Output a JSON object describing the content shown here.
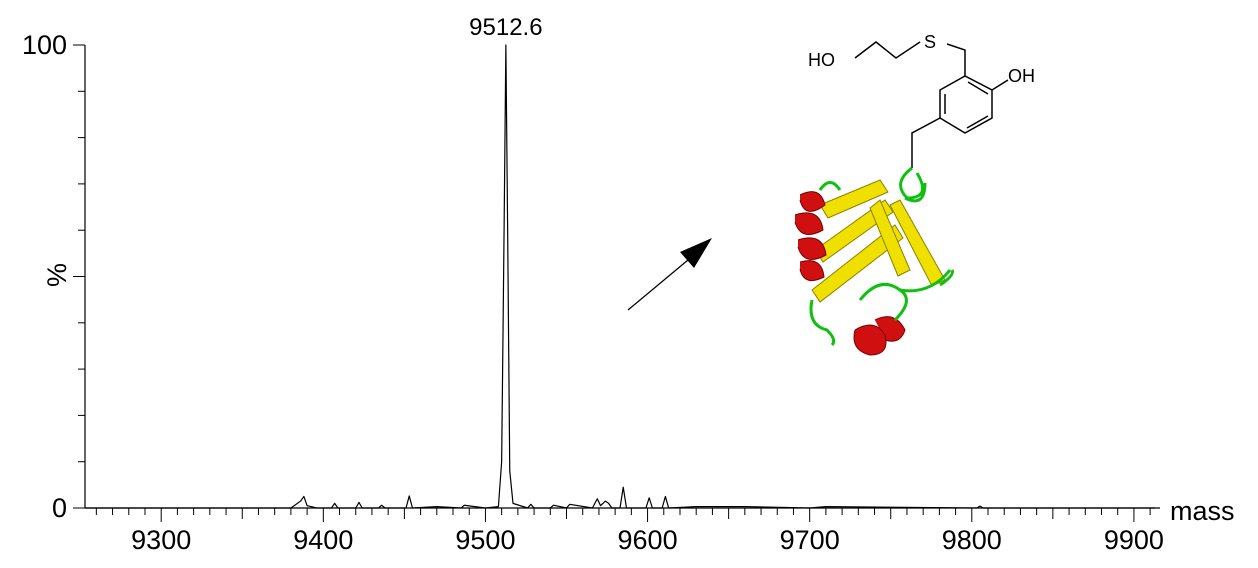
{
  "chart_data": {
    "type": "line",
    "x_label": "mass",
    "y_label": "%",
    "x": [
      9253,
      9380,
      9386,
      9388,
      9390,
      9396,
      9405,
      9407,
      9409,
      9420,
      9422,
      9424,
      9434,
      9436,
      9438,
      9451,
      9453,
      9455,
      9470,
      9485,
      9487,
      9500,
      9508,
      9510,
      9511.5,
      9512.6,
      9513.7,
      9515,
      9517,
      9526,
      9528,
      9530,
      9540,
      9542,
      9550,
      9552,
      9566,
      9569,
      9571,
      9574,
      9576,
      9578,
      9583,
      9585,
      9587,
      9599,
      9601,
      9603,
      9609,
      9611,
      9613,
      9630,
      9660,
      9700,
      9710,
      9803,
      9805,
      9807,
      9913
    ],
    "values": [
      0,
      0,
      1.5,
      2.5,
      0.5,
      0,
      0,
      1,
      0,
      0,
      1.2,
      0,
      0,
      0.6,
      0,
      0,
      2.6,
      0,
      0.3,
      0,
      0.6,
      0,
      0.3,
      10,
      60,
      100,
      60,
      8,
      1,
      0,
      0.8,
      0,
      0,
      0.6,
      0,
      0.8,
      0,
      2,
      0.5,
      1.5,
      1,
      0,
      0,
      4.5,
      0,
      0,
      2.2,
      0,
      0,
      2.5,
      0,
      0.3,
      0.3,
      0,
      0.3,
      0,
      0.4,
      0,
      0
    ],
    "color": "#000000",
    "annotations": [
      {
        "text": "9512.6"
      }
    ],
    "xlim": [
      9253,
      9913
    ],
    "ylim": [
      0,
      100
    ],
    "xticks": [
      9300,
      9400,
      9500,
      9600,
      9700,
      9800,
      9900
    ],
    "x_minor_ticks": [
      9260,
      9270,
      9280,
      9290,
      9310,
      9320,
      9330,
      9340,
      9350,
      9360,
      9370,
      9380,
      9390,
      9410,
      9420,
      9430,
      9440,
      9450,
      9460,
      9470,
      9480,
      9490,
      9510,
      9520,
      9530,
      9540,
      9550,
      9560,
      9570,
      9580,
      9590,
      9610,
      9620,
      9630,
      9640,
      9650,
      9660,
      9670,
      9680,
      9690,
      9710,
      9720,
      9730,
      9740,
      9750,
      9760,
      9770,
      9780,
      9790,
      9810,
      9820,
      9830,
      9840,
      9850,
      9860,
      9870,
      9880,
      9890,
      9910
    ],
    "yticks": [
      0,
      100
    ],
    "y_minor_ticks": [
      10,
      20,
      30,
      40,
      50,
      60,
      70,
      80,
      90
    ],
    "grid": false
  },
  "structure_labels": [
    "HO",
    "S",
    "OH"
  ]
}
